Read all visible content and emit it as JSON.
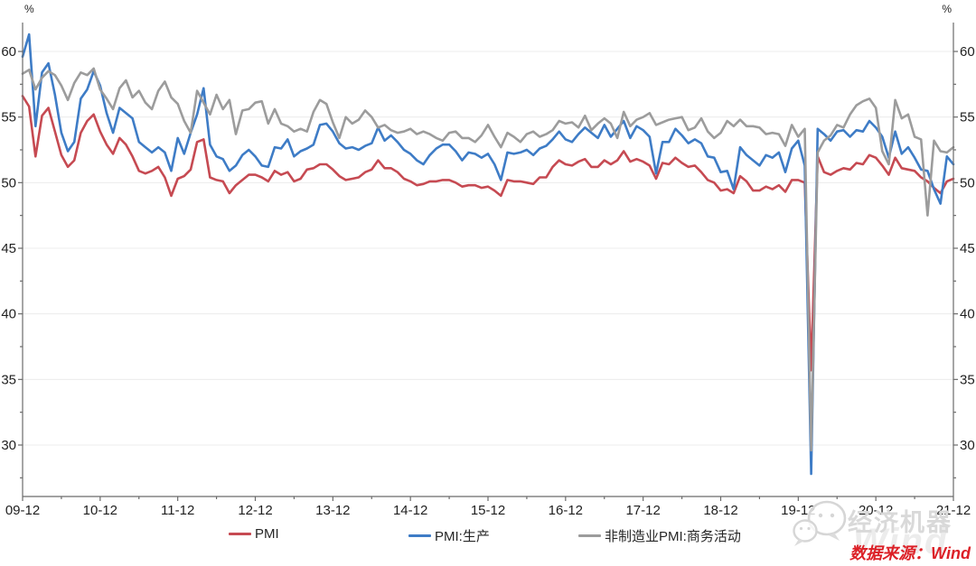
{
  "chart_data": {
    "type": "line",
    "title": "",
    "xlabel": "",
    "ylabel": "",
    "unit_label": "%",
    "grid": "horizontal-on",
    "legend_position": "bottom",
    "ylim": [
      26,
      62.5
    ],
    "y_ticks": [
      60,
      55,
      50,
      45,
      40,
      35,
      30
    ],
    "y_minor_step": 2.5,
    "x_tick_labels": [
      "09-12",
      "10-12",
      "11-12",
      "12-12",
      "13-12",
      "14-12",
      "15-12",
      "16-12",
      "17-12",
      "18-12",
      "19-12",
      "20-12",
      "21-12"
    ],
    "points_per_series": 145,
    "series": [
      {
        "name": "PMI",
        "color": "#c64a52",
        "values": [
          56.6,
          55.8,
          52.0,
          55.1,
          55.7,
          53.9,
          52.1,
          51.2,
          51.7,
          53.8,
          54.7,
          55.2,
          53.9,
          52.9,
          52.2,
          53.4,
          52.9,
          52.0,
          50.9,
          50.7,
          50.9,
          51.2,
          50.4,
          49.0,
          50.3,
          50.5,
          51.0,
          53.1,
          53.3,
          50.4,
          50.2,
          50.1,
          49.2,
          49.8,
          50.2,
          50.6,
          50.6,
          50.4,
          50.1,
          50.9,
          50.6,
          50.8,
          50.1,
          50.3,
          51.0,
          51.1,
          51.4,
          51.4,
          51.0,
          50.5,
          50.2,
          50.3,
          50.4,
          50.8,
          51.0,
          51.7,
          51.1,
          51.1,
          50.8,
          50.3,
          50.1,
          49.8,
          49.9,
          50.1,
          50.1,
          50.2,
          50.2,
          50.0,
          49.7,
          49.8,
          49.8,
          49.6,
          49.7,
          49.4,
          49.0,
          50.2,
          50.1,
          50.1,
          50.0,
          49.9,
          50.4,
          50.4,
          51.2,
          51.7,
          51.4,
          51.3,
          51.6,
          51.8,
          51.2,
          51.2,
          51.7,
          51.4,
          51.7,
          52.4,
          51.6,
          51.8,
          51.6,
          51.3,
          50.3,
          51.5,
          51.4,
          51.9,
          51.5,
          51.2,
          51.3,
          50.8,
          50.2,
          50.0,
          49.4,
          49.5,
          49.2,
          50.5,
          50.1,
          49.4,
          49.4,
          49.7,
          49.5,
          49.8,
          49.3,
          50.2,
          50.2,
          50.0,
          35.7,
          52.0,
          50.8,
          50.6,
          50.9,
          51.1,
          51.0,
          51.5,
          51.4,
          52.1,
          51.9,
          51.3,
          50.6,
          51.9,
          51.1,
          51.0,
          50.9,
          50.4,
          50.1,
          49.6,
          49.2,
          50.1,
          50.3
        ]
      },
      {
        "name": "PMI:生产",
        "color": "#3e7cc6",
        "values": [
          59.6,
          61.3,
          54.3,
          58.4,
          59.1,
          56.7,
          53.8,
          52.4,
          53.1,
          56.4,
          57.1,
          58.5,
          57.4,
          55.3,
          53.8,
          55.7,
          55.3,
          54.9,
          53.1,
          52.7,
          52.3,
          52.7,
          52.3,
          50.9,
          53.4,
          52.2,
          53.8,
          55.2,
          57.2,
          52.9,
          52.0,
          51.8,
          50.9,
          51.3,
          52.1,
          52.5,
          52.0,
          51.3,
          51.2,
          52.7,
          52.6,
          53.3,
          52.0,
          52.4,
          52.6,
          52.9,
          54.4,
          54.5,
          53.9,
          53.0,
          52.6,
          52.7,
          52.5,
          52.8,
          53.0,
          54.2,
          53.2,
          53.6,
          53.1,
          52.5,
          52.2,
          51.7,
          51.4,
          52.1,
          52.6,
          52.9,
          52.9,
          52.4,
          51.7,
          52.3,
          52.2,
          51.9,
          52.2,
          51.4,
          50.2,
          52.3,
          52.2,
          52.3,
          52.5,
          52.1,
          52.6,
          52.8,
          53.3,
          53.9,
          53.3,
          53.1,
          53.7,
          54.2,
          53.8,
          53.4,
          54.4,
          53.5,
          54.1,
          54.7,
          53.4,
          54.3,
          54.0,
          53.5,
          50.7,
          53.1,
          53.1,
          54.1,
          53.6,
          53.0,
          53.3,
          53.0,
          52.0,
          51.9,
          50.8,
          50.9,
          49.5,
          52.7,
          52.1,
          51.7,
          51.3,
          52.1,
          51.9,
          52.3,
          50.8,
          52.6,
          53.2,
          51.3,
          27.8,
          54.1,
          53.7,
          53.2,
          53.9,
          54.0,
          53.5,
          54.0,
          53.9,
          54.7,
          54.2,
          53.5,
          51.9,
          53.9,
          52.2,
          52.7,
          51.9,
          51.0,
          50.9,
          49.5,
          48.4,
          52.0,
          51.4
        ]
      },
      {
        "name": "非制造业PMI:商务活动",
        "color": "#9c9c9c",
        "values": [
          58.3,
          58.6,
          57.1,
          58.0,
          58.5,
          58.2,
          57.4,
          56.3,
          57.6,
          58.4,
          58.2,
          58.7,
          57.1,
          56.4,
          55.6,
          57.2,
          57.8,
          56.5,
          57.0,
          56.1,
          55.6,
          57.0,
          57.7,
          56.5,
          56.0,
          54.7,
          53.8,
          57.0,
          56.1,
          55.2,
          56.7,
          55.6,
          56.3,
          53.7,
          55.5,
          55.6,
          56.1,
          56.2,
          54.5,
          55.6,
          54.5,
          54.3,
          53.9,
          54.1,
          53.9,
          55.4,
          56.3,
          56.0,
          54.6,
          53.4,
          55.0,
          54.5,
          54.8,
          55.5,
          55.0,
          54.2,
          54.4,
          54.0,
          53.8,
          53.9,
          54.1,
          53.7,
          53.9,
          53.7,
          53.4,
          53.2,
          53.8,
          53.9,
          53.4,
          53.4,
          53.1,
          53.6,
          54.4,
          53.5,
          52.7,
          53.8,
          53.5,
          53.1,
          53.7,
          53.9,
          53.5,
          53.7,
          54.0,
          54.7,
          54.5,
          54.6,
          54.2,
          55.1,
          54.0,
          54.5,
          54.9,
          54.5,
          53.4,
          55.4,
          54.3,
          54.8,
          55.0,
          55.3,
          54.4,
          54.6,
          54.8,
          54.9,
          55.0,
          54.0,
          54.2,
          54.9,
          53.9,
          53.4,
          53.8,
          54.7,
          54.3,
          54.8,
          54.3,
          54.3,
          54.2,
          53.7,
          53.8,
          53.7,
          52.8,
          54.4,
          53.5,
          54.1,
          29.6,
          52.3,
          53.2,
          53.6,
          54.4,
          54.2,
          55.2,
          55.9,
          56.2,
          56.4,
          55.7,
          52.4,
          51.4,
          56.3,
          54.9,
          55.2,
          53.5,
          53.3,
          47.5,
          53.2,
          52.4,
          52.3,
          52.7
        ]
      }
    ],
    "style": {
      "grid_color": "#ececec",
      "axis_color": "#6b6b6b",
      "tick_label_color": "#1f1f1f"
    }
  },
  "legend": {
    "items": [
      {
        "label": "PMI"
      },
      {
        "label": "PMI:生产"
      },
      {
        "label": "非制造业PMI:商务活动"
      }
    ]
  },
  "watermark": {
    "brand": "经济机器",
    "background_text": "Wind",
    "icon": "wechat-icon",
    "color": "#d9d9d9"
  },
  "source": {
    "text": "数据来源：Wind",
    "color": "#dc2027"
  }
}
